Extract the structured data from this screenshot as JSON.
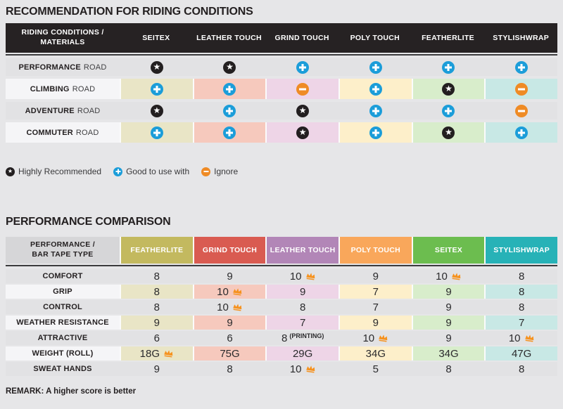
{
  "section1": {
    "title": "RECOMMENDATION FOR RIDING CONDITIONS",
    "header_label_line1": "RIDING CONDITIONS /",
    "header_label_line2": "MATERIALS",
    "columns": [
      "SEITEX",
      "LEATHER TOUCH",
      "GRIND TOUCH",
      "POLY TOUCH",
      "FEATHERLITE",
      "STYLISHWRAP"
    ],
    "rows": [
      {
        "label_bold": "PERFORMANCE",
        "label_rest": "ROAD",
        "tinted": false,
        "cells": [
          "star",
          "star",
          "plus",
          "plus",
          "plus",
          "plus"
        ]
      },
      {
        "label_bold": "CLIMBING",
        "label_rest": "ROAD",
        "tinted": true,
        "cells": [
          "plus",
          "plus",
          "minus",
          "plus",
          "star",
          "minus"
        ]
      },
      {
        "label_bold": "ADVENTURE",
        "label_rest": "ROAD",
        "tinted": false,
        "cells": [
          "star",
          "plus",
          "star",
          "plus",
          "plus",
          "minus"
        ]
      },
      {
        "label_bold": "COMMUTER",
        "label_rest": "ROAD",
        "tinted": true,
        "cells": [
          "plus",
          "plus",
          "star",
          "plus",
          "star",
          "plus"
        ]
      }
    ],
    "legend": [
      {
        "icon": "star",
        "label": "Highly Recommended"
      },
      {
        "icon": "plus",
        "label": "Good to use with"
      },
      {
        "icon": "minus",
        "label": "Ignore"
      }
    ]
  },
  "section2": {
    "title": "PERFORMANCE COMPARISON",
    "header_label_line1": "PERFORMANCE /",
    "header_label_line2": "BAR TAPE TYPE",
    "columns": [
      {
        "label": "FEATHERLITE",
        "color": "#c3b95f"
      },
      {
        "label": "GRIND TOUCH",
        "color": "#d95b51"
      },
      {
        "label": "LEATHER TOUCH",
        "color": "#b286b7"
      },
      {
        "label": "POLY TOUCH",
        "color": "#f9a75b"
      },
      {
        "label": "SEITEX",
        "color": "#6cbd4f"
      },
      {
        "label": "STYLISHWRAP",
        "color": "#27b2b7"
      }
    ],
    "rows": [
      {
        "label": "COMFORT",
        "tinted": false,
        "cells": [
          {
            "text": "8"
          },
          {
            "text": "9"
          },
          {
            "text": "10",
            "crown": true
          },
          {
            "text": "9"
          },
          {
            "text": "10",
            "crown": true
          },
          {
            "text": "8"
          }
        ]
      },
      {
        "label": "GRIP",
        "tinted": true,
        "cells": [
          {
            "text": "8"
          },
          {
            "text": "10",
            "crown": true
          },
          {
            "text": "9"
          },
          {
            "text": "7"
          },
          {
            "text": "9"
          },
          {
            "text": "8"
          }
        ]
      },
      {
        "label": "CONTROL",
        "tinted": false,
        "cells": [
          {
            "text": "8"
          },
          {
            "text": "10",
            "crown": true
          },
          {
            "text": "8"
          },
          {
            "text": "7"
          },
          {
            "text": "9"
          },
          {
            "text": "8"
          }
        ]
      },
      {
        "label": "WEATHER RESISTANCE",
        "tinted": true,
        "cells": [
          {
            "text": "9"
          },
          {
            "text": "9"
          },
          {
            "text": "7"
          },
          {
            "text": "9"
          },
          {
            "text": "9"
          },
          {
            "text": "7"
          }
        ]
      },
      {
        "label": "ATTRACTIVE",
        "tinted": false,
        "cells": [
          {
            "text": "6"
          },
          {
            "text": "6"
          },
          {
            "text": "8",
            "suffix": "(PRINTING)"
          },
          {
            "text": "10",
            "crown": true
          },
          {
            "text": "9"
          },
          {
            "text": "10",
            "crown": true
          }
        ]
      },
      {
        "label": "WEIGHT (ROLL)",
        "tinted": true,
        "cells": [
          {
            "text": "18G",
            "crown": true
          },
          {
            "text": "75G"
          },
          {
            "text": "29G"
          },
          {
            "text": "34G"
          },
          {
            "text": "34G"
          },
          {
            "text": "47G"
          }
        ]
      },
      {
        "label": "SWEAT HANDS",
        "tinted": false,
        "cells": [
          {
            "text": "9"
          },
          {
            "text": "8"
          },
          {
            "text": "10",
            "crown": true
          },
          {
            "text": "5"
          },
          {
            "text": "8"
          },
          {
            "text": "8"
          }
        ]
      }
    ],
    "remark": "REMARK: A higher score is better"
  },
  "palette": {
    "page_bg": "#e6e6e8",
    "table1_header_bg": "#262223",
    "gray_row": "#e2e2e4",
    "white_label_row": "#f5f5f7",
    "cell_light": [
      "#e9e5c6",
      "#f6c9bd",
      "#eed5e7",
      "#fdefca",
      "#d8edcb",
      "#c8e8e5"
    ],
    "icon_star_bg": "#231f20",
    "icon_plus_bg": "#1b9dd9",
    "icon_minus_bg": "#ef8b25",
    "crown": "#f6921e"
  },
  "chart_data": [
    {
      "type": "table",
      "title": "RECOMMENDATION FOR RIDING CONDITIONS",
      "columns": [
        "SEITEX",
        "LEATHER TOUCH",
        "GRIND TOUCH",
        "POLY TOUCH",
        "FEATHERLITE",
        "STYLISHWRAP"
      ],
      "rows": [
        "PERFORMANCE ROAD",
        "CLIMBING ROAD",
        "ADVENTURE ROAD",
        "COMMUTER ROAD"
      ],
      "values": [
        [
          "highly_recommended",
          "highly_recommended",
          "good_to_use_with",
          "good_to_use_with",
          "good_to_use_with",
          "good_to_use_with"
        ],
        [
          "good_to_use_with",
          "good_to_use_with",
          "ignore",
          "good_to_use_with",
          "highly_recommended",
          "ignore"
        ],
        [
          "highly_recommended",
          "good_to_use_with",
          "highly_recommended",
          "good_to_use_with",
          "good_to_use_with",
          "ignore"
        ],
        [
          "good_to_use_with",
          "good_to_use_with",
          "highly_recommended",
          "good_to_use_with",
          "highly_recommended",
          "good_to_use_with"
        ]
      ],
      "legend": [
        "Highly Recommended",
        "Good to use with",
        "Ignore"
      ]
    },
    {
      "type": "table",
      "title": "PERFORMANCE COMPARISON",
      "columns": [
        "FEATHERLITE",
        "GRIND TOUCH",
        "LEATHER TOUCH",
        "POLY TOUCH",
        "SEITEX",
        "STYLISHWRAP"
      ],
      "rows": [
        "COMFORT",
        "GRIP",
        "CONTROL",
        "WEATHER RESISTANCE",
        "ATTRACTIVE",
        "WEIGHT (ROLL)",
        "SWEAT HANDS"
      ],
      "values": [
        [
          8,
          9,
          10,
          9,
          10,
          8
        ],
        [
          8,
          10,
          9,
          7,
          9,
          8
        ],
        [
          8,
          10,
          8,
          7,
          9,
          8
        ],
        [
          9,
          9,
          7,
          9,
          9,
          7
        ],
        [
          6,
          6,
          "8 (PRINTING)",
          10,
          9,
          10
        ],
        [
          "18G",
          "75G",
          "29G",
          "34G",
          "34G",
          "47G"
        ],
        [
          9,
          8,
          10,
          5,
          8,
          8
        ]
      ],
      "crown_marks_best": [
        [
          "LEATHER TOUCH",
          "SEITEX"
        ],
        [
          "GRIND TOUCH"
        ],
        [
          "GRIND TOUCH"
        ],
        [],
        [
          "POLY TOUCH",
          "STYLISHWRAP"
        ],
        [
          "FEATHERLITE"
        ],
        [
          "LEATHER TOUCH"
        ]
      ],
      "remark": "REMARK: A higher score is better"
    }
  ]
}
